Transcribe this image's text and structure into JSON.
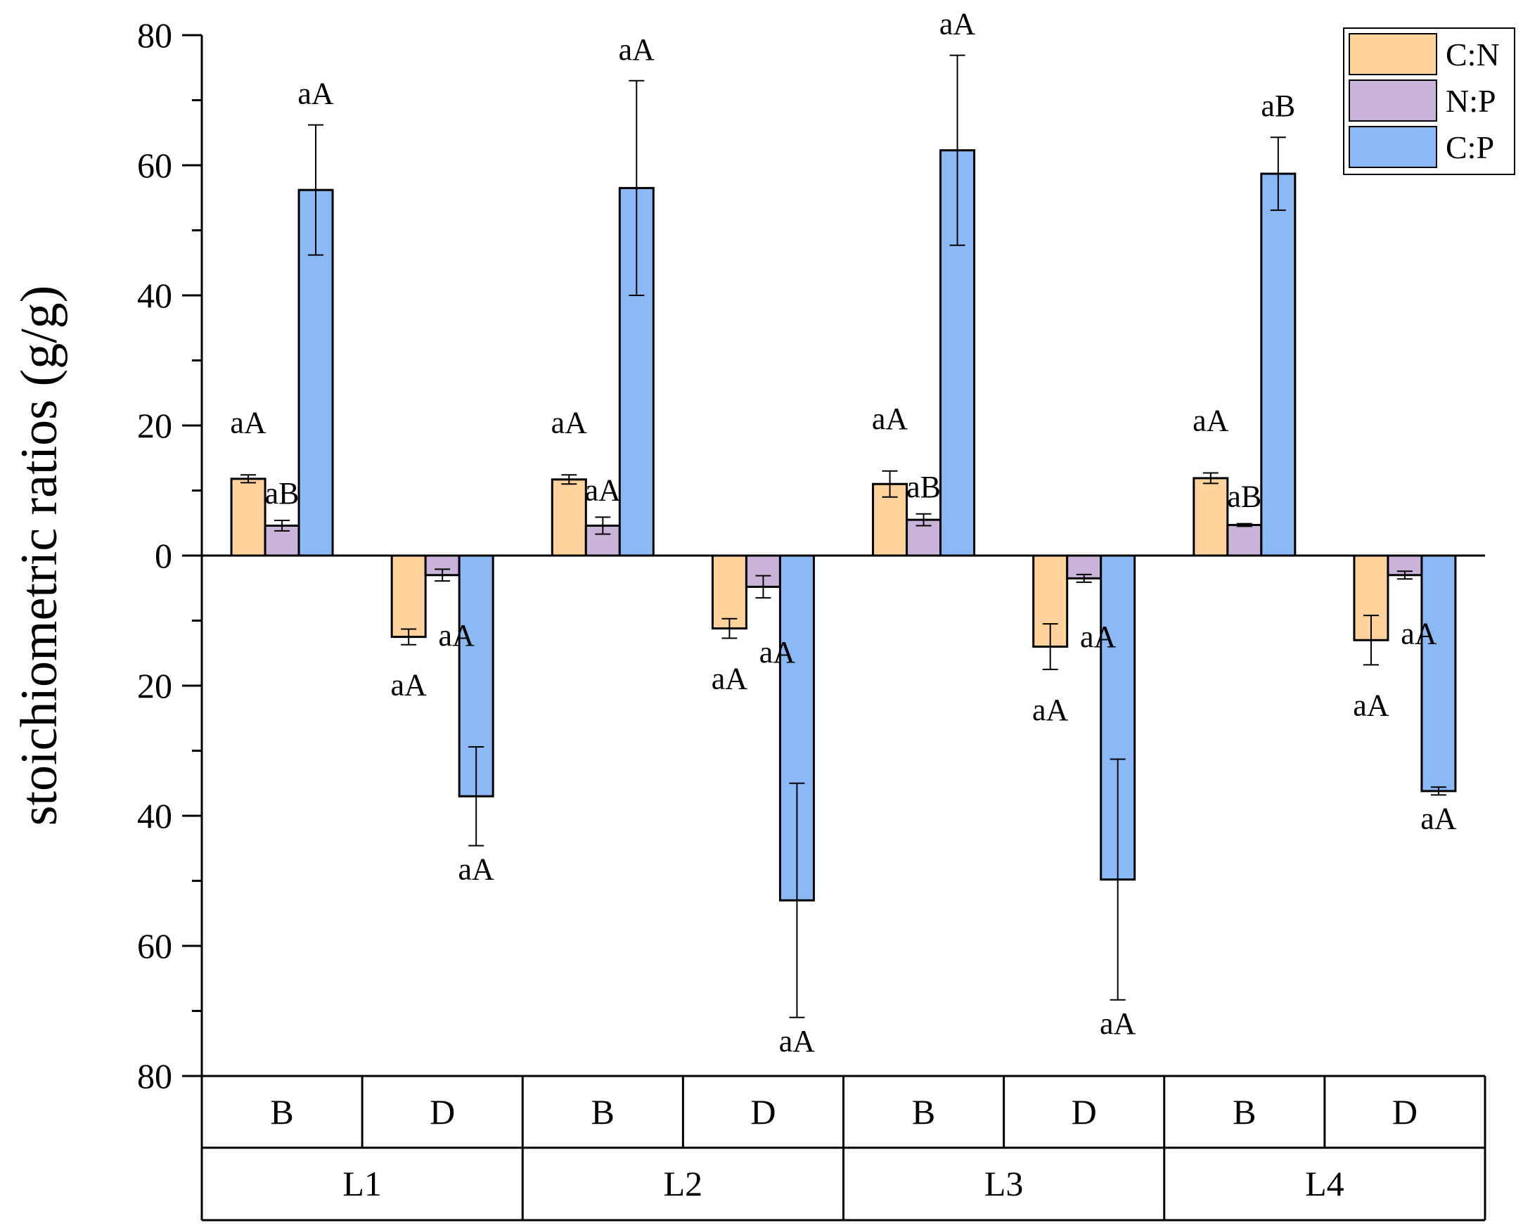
{
  "chart_data": {
    "type": "bar",
    "title": "",
    "xlabel": "",
    "ylabel": "stoichiometric ratios (g/g)",
    "ylim": [
      -80,
      80
    ],
    "y_ticks": [
      80,
      60,
      40,
      20,
      0,
      20,
      40,
      60,
      80
    ],
    "grid": false,
    "legend_position": "top-right",
    "legend": [
      "C:N",
      "N:P",
      "C:P"
    ],
    "colors": {
      "C:N": "#FFD39B",
      "N:P": "#C9B3D9",
      "C:P": "#8AB9F5"
    },
    "groups": [
      {
        "level": "L1",
        "subgroups": [
          {
            "name": "B",
            "values": [
              11.8,
              4.6,
              56.2
            ],
            "errors": [
              0.6,
              0.8,
              10.0
            ],
            "labels": [
              "aA",
              "aB",
              "aA"
            ]
          },
          {
            "name": "D",
            "values": [
              -12.5,
              -3.0,
              -37.0
            ],
            "errors": [
              1.2,
              0.9,
              7.6
            ],
            "labels": [
              "aA",
              "aA",
              "aA"
            ]
          }
        ]
      },
      {
        "level": "L2",
        "subgroups": [
          {
            "name": "B",
            "values": [
              11.7,
              4.6,
              56.5
            ],
            "errors": [
              0.7,
              1.3,
              16.5
            ],
            "labels": [
              "aA",
              "aA",
              "aA"
            ]
          },
          {
            "name": "D",
            "values": [
              -11.2,
              -4.8,
              -53.0
            ],
            "errors": [
              1.5,
              1.7,
              18.0
            ],
            "labels": [
              "aA",
              "aA",
              "aA"
            ]
          }
        ]
      },
      {
        "level": "L3",
        "subgroups": [
          {
            "name": "B",
            "values": [
              11.0,
              5.5,
              62.3
            ],
            "errors": [
              2.0,
              0.9,
              14.6
            ],
            "labels": [
              "aA",
              "aB",
              "aA"
            ]
          },
          {
            "name": "D",
            "values": [
              -14.0,
              -3.5,
              -49.8
            ],
            "errors": [
              3.5,
              0.6,
              18.5
            ],
            "labels": [
              "aA",
              "aA",
              "aA"
            ]
          }
        ]
      },
      {
        "level": "L4",
        "subgroups": [
          {
            "name": "B",
            "values": [
              11.9,
              4.7,
              58.7
            ],
            "errors": [
              0.8,
              0.2,
              5.6
            ],
            "labels": [
              "aA",
              "aB",
              "aB"
            ]
          },
          {
            "name": "D",
            "values": [
              -13.0,
              -3.0,
              -36.2
            ],
            "errors": [
              3.8,
              0.6,
              0.6
            ],
            "labels": [
              "aA",
              "aA",
              "aA"
            ]
          }
        ]
      }
    ]
  }
}
